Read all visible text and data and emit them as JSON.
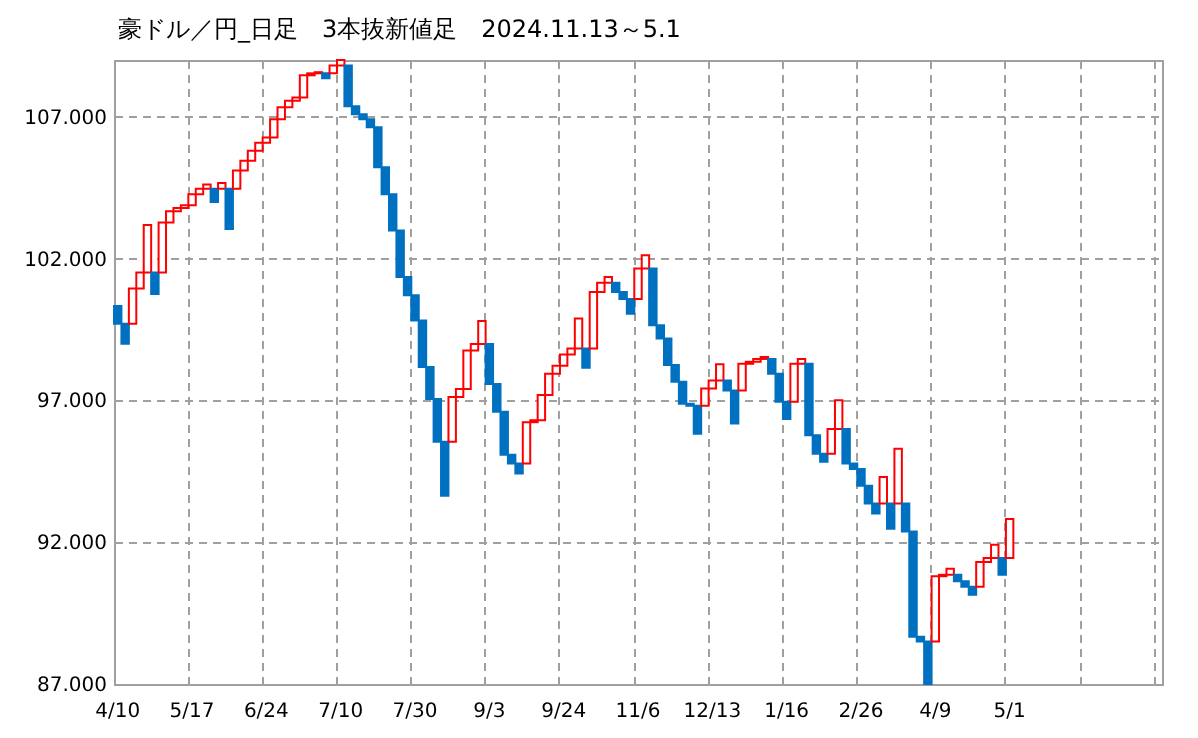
{
  "chart_data": {
    "type": "bar",
    "title": "豪ドル／円_日足　3本抜新値足　2024.11.13～5.1",
    "categories": [
      "4/10",
      null,
      null,
      null,
      null,
      null,
      null,
      null,
      null,
      null,
      "5/17",
      null,
      null,
      null,
      null,
      null,
      null,
      null,
      null,
      null,
      "6/24",
      null,
      null,
      null,
      null,
      null,
      null,
      null,
      null,
      null,
      "7/10",
      null,
      null,
      null,
      null,
      null,
      null,
      null,
      null,
      null,
      "7/30",
      null,
      null,
      null,
      null,
      null,
      null,
      null,
      null,
      null,
      "9/3",
      null,
      null,
      null,
      null,
      null,
      null,
      null,
      null,
      null,
      "9/24",
      null,
      null,
      null,
      null,
      null,
      null,
      null,
      null,
      null,
      "11/6",
      null,
      null,
      null,
      null,
      null,
      null,
      null,
      null,
      null,
      "12/13",
      null,
      null,
      null,
      null,
      null,
      null,
      null,
      null,
      null,
      "1/16",
      null,
      null,
      null,
      null,
      null,
      null,
      null,
      null,
      null,
      "2/26",
      null,
      null,
      null,
      null,
      null,
      null,
      null,
      null,
      null,
      "4/9",
      null,
      null,
      null,
      null,
      null,
      null,
      null,
      null,
      null,
      "5/1",
      null,
      null,
      null,
      null,
      null,
      null,
      null,
      null,
      null,
      null,
      null,
      null,
      null,
      null,
      null,
      null,
      null,
      null,
      null,
      null
    ],
    "base": [
      100.33,
      99.7,
      99.7,
      100.94,
      101.51,
      101.51,
      101.51,
      103.27,
      103.67,
      103.78,
      103.88,
      104.27,
      104.46,
      104.46,
      104.46,
      104.46,
      104.46,
      105.1,
      105.45,
      105.8,
      106.08,
      106.27,
      106.91,
      107.33,
      107.56,
      107.68,
      108.46,
      108.53,
      108.53,
      108.53,
      108.81,
      108.81,
      107.37,
      107.09,
      106.91,
      106.63,
      105.22,
      104.27,
      102.99,
      101.35,
      100.71,
      99.82,
      98.18,
      97.05,
      95.54,
      95.54,
      97.12,
      97.4,
      98.76,
      98.99,
      98.99,
      97.58,
      96.6,
      95.08,
      94.77,
      94.77,
      96.23,
      96.3,
      97.19,
      97.94,
      98.22,
      98.62,
      98.83,
      98.83,
      98.83,
      100.82,
      101.15,
      101.15,
      100.82,
      100.57,
      100.57,
      101.65,
      101.65,
      99.65,
      99.18,
      98.25,
      97.66,
      96.88,
      96.81,
      96.81,
      97.42,
      97.7,
      97.7,
      97.35,
      97.35,
      98.29,
      98.36,
      98.46,
      98.46,
      97.94,
      96.95,
      96.95,
      98.29,
      98.29,
      95.77,
      95.12,
      95.12,
      95.99,
      95.99,
      94.77,
      94.58,
      93.99,
      93.36,
      93.36,
      93.36,
      93.36,
      93.36,
      92.38,
      88.67,
      88.5,
      88.5,
      90.8,
      90.85,
      90.85,
      90.62,
      90.43,
      90.43,
      91.3,
      91.44,
      91.44,
      91.44,
      null,
      null,
      null,
      null,
      null,
      null,
      null,
      null,
      null,
      null,
      null,
      null,
      null,
      null,
      null,
      null,
      null,
      null,
      null,
      null
    ],
    "values": [
      -0.63,
      -0.7,
      1.24,
      0.57,
      1.67,
      -0.76,
      1.76,
      0.4,
      0.11,
      0.1,
      0.39,
      0.19,
      0.15,
      -0.47,
      0.2,
      -1.42,
      0.64,
      0.35,
      0.35,
      0.28,
      0.19,
      0.64,
      0.42,
      0.23,
      0.12,
      0.78,
      0.07,
      0.04,
      -0.17,
      0.28,
      0.19,
      -1.44,
      -0.28,
      -0.18,
      -0.28,
      -1.41,
      -0.95,
      -1.28,
      -1.64,
      -0.64,
      -0.89,
      -1.64,
      -1.13,
      -1.51,
      -1.9,
      1.58,
      0.28,
      1.36,
      0.23,
      0.81,
      -1.41,
      -0.98,
      -1.52,
      -0.31,
      -0.35,
      1.46,
      0.07,
      0.89,
      0.75,
      0.28,
      0.4,
      0.21,
      1.06,
      -0.68,
      1.99,
      0.33,
      0.2,
      -0.33,
      -0.25,
      -0.52,
      1.08,
      0.47,
      -2.0,
      -0.47,
      -0.93,
      -0.59,
      -0.78,
      -0.07,
      -0.99,
      0.61,
      0.28,
      0.57,
      -0.35,
      -1.17,
      0.94,
      0.07,
      0.1,
      0.07,
      -0.52,
      -0.99,
      -0.61,
      1.34,
      0.17,
      -2.52,
      -0.65,
      -0.28,
      0.87,
      1.01,
      -1.22,
      -0.19,
      -0.59,
      -0.63,
      -0.35,
      0.94,
      -0.89,
      1.93,
      -0.98,
      -3.71,
      -0.17,
      -1.5,
      2.3,
      0.05,
      0.21,
      -0.23,
      -0.19,
      -0.28,
      0.87,
      0.14,
      0.47,
      -0.59,
      1.38,
      null,
      null,
      null,
      null,
      null,
      null,
      null,
      null,
      null,
      null,
      null,
      null,
      null,
      null,
      null,
      null,
      null,
      null,
      null,
      null
    ],
    "colors": [
      "#0070c0",
      "#0070c0",
      "#ff0000",
      "#ff0000",
      "#ff0000",
      "#0070c0",
      "#ff0000",
      "#ff0000",
      "#ff0000",
      "#ff0000",
      "#ff0000",
      "#ff0000",
      "#ff0000",
      "#0070c0",
      "#ff0000",
      "#0070c0",
      "#ff0000",
      "#ff0000",
      "#ff0000",
      "#ff0000",
      "#ff0000",
      "#ff0000",
      "#ff0000",
      "#ff0000",
      "#ff0000",
      "#ff0000",
      "#ff0000",
      "#ff0000",
      "#0070c0",
      "#ff0000",
      "#ff0000",
      "#0070c0",
      "#0070c0",
      "#0070c0",
      "#0070c0",
      "#0070c0",
      "#0070c0",
      "#0070c0",
      "#0070c0",
      "#0070c0",
      "#0070c0",
      "#0070c0",
      "#0070c0",
      "#0070c0",
      "#0070c0",
      "#ff0000",
      "#ff0000",
      "#ff0000",
      "#ff0000",
      "#ff0000",
      "#0070c0",
      "#0070c0",
      "#0070c0",
      "#0070c0",
      "#0070c0",
      "#ff0000",
      "#ff0000",
      "#ff0000",
      "#ff0000",
      "#ff0000",
      "#ff0000",
      "#ff0000",
      "#ff0000",
      "#0070c0",
      "#ff0000",
      "#ff0000",
      "#ff0000",
      "#0070c0",
      "#0070c0",
      "#0070c0",
      "#ff0000",
      "#ff0000",
      "#0070c0",
      "#0070c0",
      "#0070c0",
      "#0070c0",
      "#0070c0",
      "#0070c0",
      "#0070c0",
      "#ff0000",
      "#ff0000",
      "#ff0000",
      "#0070c0",
      "#0070c0",
      "#ff0000",
      "#ff0000",
      "#ff0000",
      "#ff0000",
      "#0070c0",
      "#0070c0",
      "#0070c0",
      "#ff0000",
      "#ff0000",
      "#0070c0",
      "#0070c0",
      "#0070c0",
      "#ff0000",
      "#ff0000",
      "#0070c0",
      "#0070c0",
      "#0070c0",
      "#0070c0",
      "#0070c0",
      "#ff0000",
      "#0070c0",
      "#ff0000",
      "#0070c0",
      "#0070c0",
      "#0070c0",
      "#0070c0",
      "#ff0000",
      "#ff0000",
      "#ff0000",
      "#0070c0",
      "#0070c0",
      "#0070c0",
      "#ff0000",
      "#ff0000",
      "#ff0000",
      "#0070c0",
      "#ff0000",
      null,
      null,
      null,
      null,
      null,
      null,
      null,
      null,
      null,
      null,
      null,
      null,
      null,
      null,
      null,
      null,
      null,
      null,
      null,
      null
    ],
    "ylim": [
      87,
      109
    ],
    "yticks": [
      {
        "value": 87,
        "label": "87.000"
      },
      {
        "value": 92,
        "label": "92.000"
      },
      {
        "value": 97,
        "label": "97.000"
      },
      {
        "value": 102,
        "label": "102.000"
      },
      {
        "value": 107,
        "label": "107.000"
      }
    ],
    "grid": true
  }
}
